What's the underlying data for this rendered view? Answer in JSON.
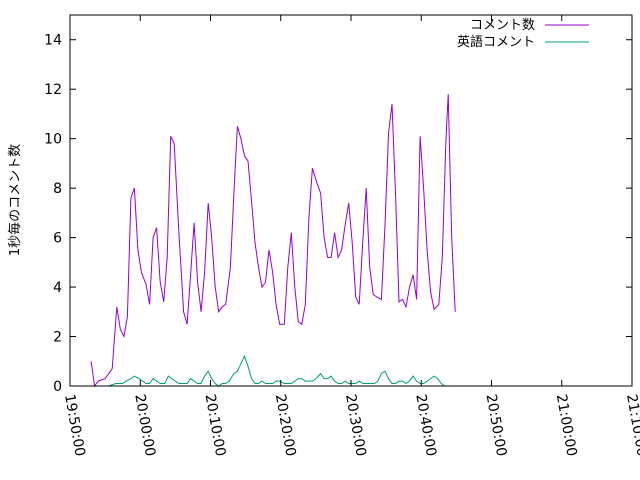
{
  "chart_data": {
    "type": "line",
    "ylabel": "1秒毎のコメント数",
    "xlabel": "",
    "title": "",
    "ylim": [
      0,
      15
    ],
    "xlim": [
      "19:50:00",
      "21:10:00"
    ],
    "x_ticks": [
      "19:50:00",
      "20:00:00",
      "20:10:00",
      "20:20:00",
      "20:30:00",
      "20:40:00",
      "20:50:00",
      "21:00:00",
      "21:10:00"
    ],
    "y_ticks": [
      "0",
      "2",
      "4",
      "6",
      "8",
      "10",
      "12",
      "14"
    ],
    "legend_position": "top-right",
    "grid": false,
    "series": [
      {
        "name": "コメント数",
        "color": "#9400d3",
        "points": [
          [
            "19:53:00",
            1.0
          ],
          [
            "19:53:30",
            0.0
          ],
          [
            "19:54:00",
            0.2
          ],
          [
            "19:55:00",
            0.3
          ],
          [
            "19:56:00",
            0.7
          ],
          [
            "19:56:40",
            3.2
          ],
          [
            "19:57:10",
            2.3
          ],
          [
            "19:57:40",
            2.0
          ],
          [
            "19:58:10",
            2.8
          ],
          [
            "19:58:40",
            7.6
          ],
          [
            "19:59:10",
            8.0
          ],
          [
            "19:59:40",
            5.5
          ],
          [
            "20:00:10",
            4.6
          ],
          [
            "20:00:50",
            4.1
          ],
          [
            "20:01:20",
            3.3
          ],
          [
            "20:01:50",
            6.0
          ],
          [
            "20:02:20",
            6.4
          ],
          [
            "20:02:50",
            4.2
          ],
          [
            "20:03:20",
            3.4
          ],
          [
            "20:03:50",
            5.2
          ],
          [
            "20:04:20",
            10.1
          ],
          [
            "20:04:50",
            9.8
          ],
          [
            "20:05:30",
            6.2
          ],
          [
            "20:06:10",
            3.0
          ],
          [
            "20:06:40",
            2.5
          ],
          [
            "20:07:10",
            4.5
          ],
          [
            "20:07:40",
            6.6
          ],
          [
            "20:08:10",
            4.2
          ],
          [
            "20:08:40",
            3.0
          ],
          [
            "20:09:10",
            4.6
          ],
          [
            "20:09:40",
            7.4
          ],
          [
            "20:10:10",
            6.0
          ],
          [
            "20:10:40",
            4.0
          ],
          [
            "20:11:10",
            3.0
          ],
          [
            "20:11:40",
            3.2
          ],
          [
            "20:12:10",
            3.3
          ],
          [
            "20:12:50",
            4.8
          ],
          [
            "20:13:20",
            7.8
          ],
          [
            "20:13:50",
            10.5
          ],
          [
            "20:14:20",
            10.0
          ],
          [
            "20:14:50",
            9.3
          ],
          [
            "20:15:20",
            9.1
          ],
          [
            "20:15:50",
            7.5
          ],
          [
            "20:16:20",
            5.8
          ],
          [
            "20:16:50",
            4.8
          ],
          [
            "20:17:20",
            4.0
          ],
          [
            "20:17:50",
            4.2
          ],
          [
            "20:18:20",
            5.5
          ],
          [
            "20:18:50",
            4.6
          ],
          [
            "20:19:20",
            3.3
          ],
          [
            "20:19:50",
            2.5
          ],
          [
            "20:20:30",
            2.5
          ],
          [
            "20:21:00",
            4.8
          ],
          [
            "20:21:30",
            6.2
          ],
          [
            "20:22:00",
            4.0
          ],
          [
            "20:22:30",
            2.6
          ],
          [
            "20:23:00",
            2.5
          ],
          [
            "20:23:30",
            3.3
          ],
          [
            "20:24:00",
            6.8
          ],
          [
            "20:24:30",
            8.8
          ],
          [
            "20:25:10",
            8.2
          ],
          [
            "20:25:40",
            7.8
          ],
          [
            "20:26:10",
            6.0
          ],
          [
            "20:26:40",
            5.2
          ],
          [
            "20:27:10",
            5.2
          ],
          [
            "20:27:40",
            6.2
          ],
          [
            "20:28:10",
            5.2
          ],
          [
            "20:28:40",
            5.5
          ],
          [
            "20:29:10",
            6.5
          ],
          [
            "20:29:40",
            7.4
          ],
          [
            "20:30:10",
            5.8
          ],
          [
            "20:30:40",
            3.6
          ],
          [
            "20:31:10",
            3.3
          ],
          [
            "20:31:40",
            5.8
          ],
          [
            "20:32:10",
            8.0
          ],
          [
            "20:32:40",
            4.8
          ],
          [
            "20:33:10",
            3.7
          ],
          [
            "20:33:40",
            3.6
          ],
          [
            "20:34:20",
            3.5
          ],
          [
            "20:34:50",
            6.5
          ],
          [
            "20:35:20",
            10.2
          ],
          [
            "20:35:50",
            11.4
          ],
          [
            "20:36:20",
            7.8
          ],
          [
            "20:36:50",
            3.4
          ],
          [
            "20:37:20",
            3.5
          ],
          [
            "20:37:50",
            3.2
          ],
          [
            "20:38:20",
            4.0
          ],
          [
            "20:38:50",
            4.5
          ],
          [
            "20:39:20",
            3.5
          ],
          [
            "20:39:50",
            10.1
          ],
          [
            "20:40:20",
            8.0
          ],
          [
            "20:40:50",
            5.5
          ],
          [
            "20:41:20",
            3.8
          ],
          [
            "20:41:50",
            3.1
          ],
          [
            "20:42:30",
            3.3
          ],
          [
            "20:43:00",
            5.2
          ],
          [
            "20:43:30",
            9.8
          ],
          [
            "20:43:50",
            11.8
          ],
          [
            "20:44:20",
            6.0
          ],
          [
            "20:44:50",
            3.0
          ]
        ]
      },
      {
        "name": "英語コメント",
        "color": "#009e73",
        "points": [
          [
            "19:54:30",
            0.0
          ],
          [
            "19:55:30",
            0.0
          ],
          [
            "19:56:30",
            0.1
          ],
          [
            "19:57:30",
            0.1
          ],
          [
            "19:58:00",
            0.2
          ],
          [
            "19:58:40",
            0.3
          ],
          [
            "19:59:10",
            0.4
          ],
          [
            "19:59:50",
            0.3
          ],
          [
            "20:00:20",
            0.2
          ],
          [
            "20:00:50",
            0.1
          ],
          [
            "20:01:20",
            0.1
          ],
          [
            "20:01:50",
            0.3
          ],
          [
            "20:02:20",
            0.2
          ],
          [
            "20:02:50",
            0.1
          ],
          [
            "20:03:30",
            0.1
          ],
          [
            "20:04:00",
            0.4
          ],
          [
            "20:04:30",
            0.3
          ],
          [
            "20:05:00",
            0.2
          ],
          [
            "20:05:30",
            0.1
          ],
          [
            "20:06:10",
            0.1
          ],
          [
            "20:06:40",
            0.1
          ],
          [
            "20:07:10",
            0.3
          ],
          [
            "20:07:40",
            0.2
          ],
          [
            "20:08:10",
            0.1
          ],
          [
            "20:08:40",
            0.1
          ],
          [
            "20:09:10",
            0.4
          ],
          [
            "20:09:40",
            0.6
          ],
          [
            "20:10:10",
            0.3
          ],
          [
            "20:10:40",
            0.1
          ],
          [
            "20:11:10",
            0.0
          ],
          [
            "20:11:40",
            0.1
          ],
          [
            "20:12:10",
            0.1
          ],
          [
            "20:12:40",
            0.2
          ],
          [
            "20:13:20",
            0.5
          ],
          [
            "20:13:50",
            0.6
          ],
          [
            "20:14:20",
            0.9
          ],
          [
            "20:14:50",
            1.2
          ],
          [
            "20:15:20",
            0.8
          ],
          [
            "20:15:50",
            0.3
          ],
          [
            "20:16:20",
            0.1
          ],
          [
            "20:16:50",
            0.1
          ],
          [
            "20:17:20",
            0.2
          ],
          [
            "20:17:50",
            0.1
          ],
          [
            "20:18:20",
            0.1
          ],
          [
            "20:18:50",
            0.1
          ],
          [
            "20:19:20",
            0.2
          ],
          [
            "20:19:50",
            0.2
          ],
          [
            "20:20:30",
            0.1
          ],
          [
            "20:21:00",
            0.1
          ],
          [
            "20:21:30",
            0.1
          ],
          [
            "20:22:00",
            0.2
          ],
          [
            "20:22:30",
            0.3
          ],
          [
            "20:23:00",
            0.3
          ],
          [
            "20:23:30",
            0.2
          ],
          [
            "20:24:00",
            0.2
          ],
          [
            "20:24:30",
            0.2
          ],
          [
            "20:25:00",
            0.3
          ],
          [
            "20:25:40",
            0.5
          ],
          [
            "20:26:10",
            0.3
          ],
          [
            "20:26:40",
            0.3
          ],
          [
            "20:27:10",
            0.4
          ],
          [
            "20:27:40",
            0.2
          ],
          [
            "20:28:10",
            0.1
          ],
          [
            "20:28:40",
            0.1
          ],
          [
            "20:29:10",
            0.2
          ],
          [
            "20:29:40",
            0.1
          ],
          [
            "20:30:10",
            0.1
          ],
          [
            "20:30:40",
            0.1
          ],
          [
            "20:31:10",
            0.2
          ],
          [
            "20:31:40",
            0.1
          ],
          [
            "20:32:20",
            0.1
          ],
          [
            "20:32:50",
            0.1
          ],
          [
            "20:33:20",
            0.1
          ],
          [
            "20:33:50",
            0.2
          ],
          [
            "20:34:20",
            0.5
          ],
          [
            "20:34:50",
            0.6
          ],
          [
            "20:35:20",
            0.3
          ],
          [
            "20:35:50",
            0.1
          ],
          [
            "20:36:20",
            0.1
          ],
          [
            "20:36:50",
            0.2
          ],
          [
            "20:37:20",
            0.2
          ],
          [
            "20:37:50",
            0.1
          ],
          [
            "20:38:20",
            0.2
          ],
          [
            "20:38:50",
            0.4
          ],
          [
            "20:39:20",
            0.2
          ],
          [
            "20:39:50",
            0.1
          ],
          [
            "20:40:20",
            0.1
          ],
          [
            "20:40:50",
            0.2
          ],
          [
            "20:41:20",
            0.3
          ],
          [
            "20:41:50",
            0.4
          ],
          [
            "20:42:20",
            0.3
          ],
          [
            "20:42:50",
            0.1
          ],
          [
            "20:43:20",
            0.0
          ]
        ]
      }
    ]
  }
}
